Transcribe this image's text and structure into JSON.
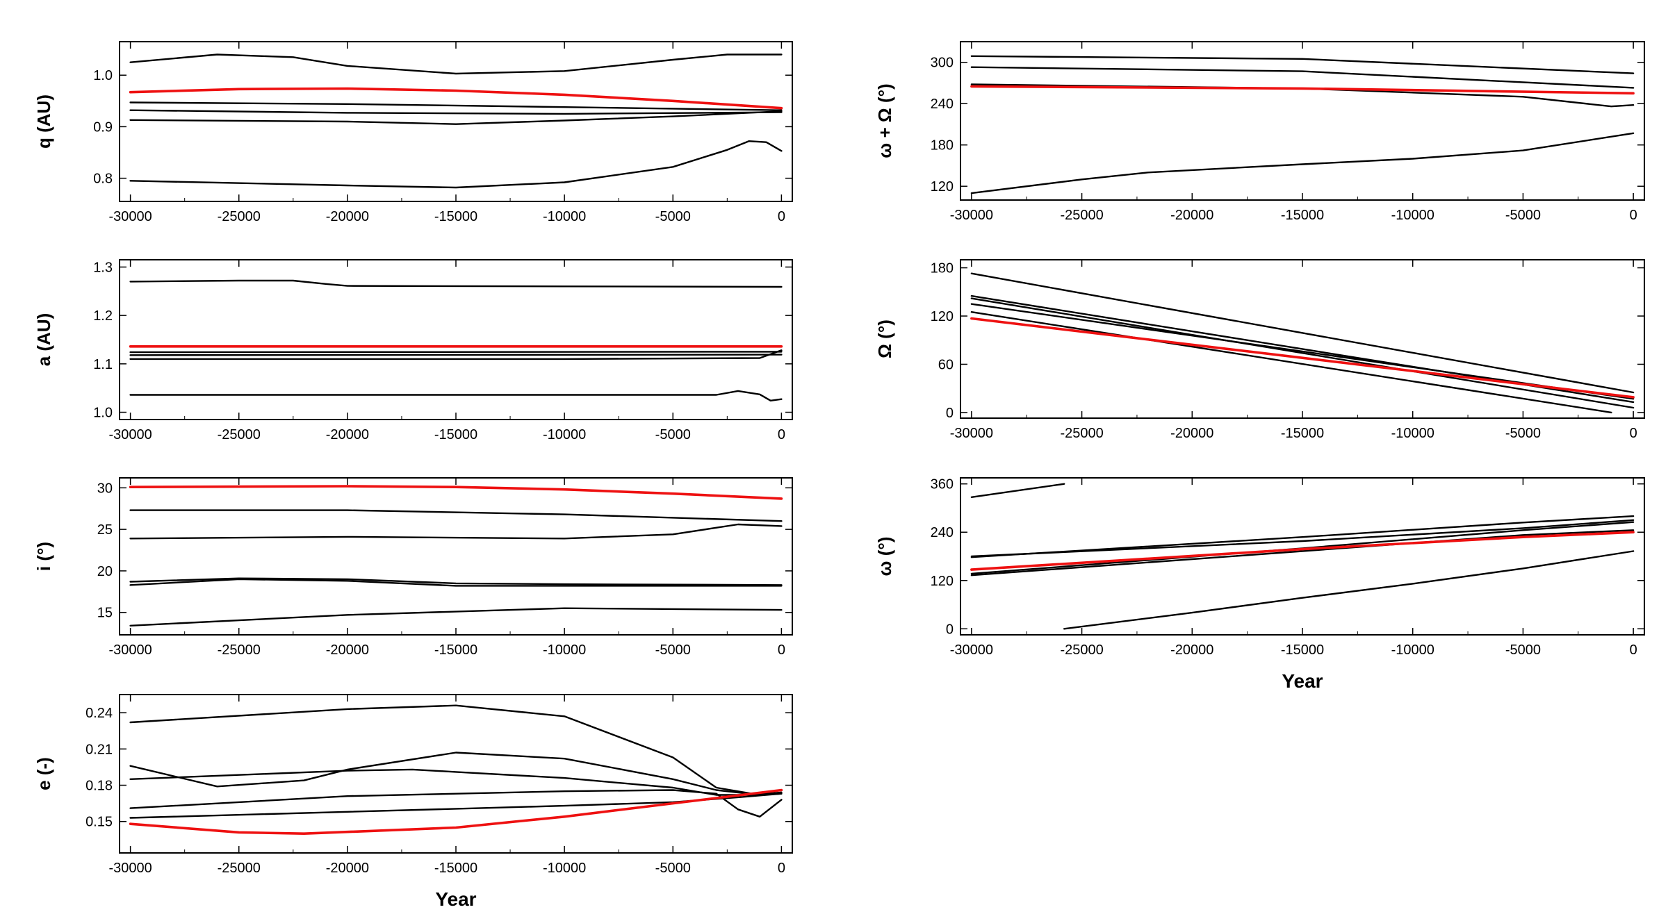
{
  "colors": {
    "frame": "#000000",
    "black_series": "#000000",
    "red_series": "#ee1111"
  },
  "xlabel": "Year",
  "chart_data": [
    {
      "id": "q",
      "type": "line",
      "ylabel": "q (AU)",
      "xlabel": "",
      "xlim": [
        -30500,
        500
      ],
      "ylim": [
        0.755,
        1.065
      ],
      "xticks": [
        -30000,
        -25000,
        -20000,
        -15000,
        -10000,
        -5000,
        0
      ],
      "yticks": [
        0.8,
        0.9,
        1.0
      ],
      "ytick_labels": [
        "0.8",
        "0.9",
        "1.0"
      ],
      "series": [
        {
          "color": "red",
          "x": [
            -30000,
            -25000,
            -20000,
            -15000,
            -10000,
            -5000,
            0
          ],
          "y": [
            0.967,
            0.973,
            0.974,
            0.97,
            0.962,
            0.95,
            0.936
          ]
        },
        {
          "color": "black",
          "x": [
            -30000,
            -26000,
            -22500,
            -20000,
            -15000,
            -10000,
            -5000,
            -2500,
            0
          ],
          "y": [
            1.025,
            1.04,
            1.035,
            1.018,
            1.003,
            1.008,
            1.03,
            1.04,
            1.04
          ]
        },
        {
          "color": "black",
          "x": [
            -30000,
            -20000,
            -10000,
            0
          ],
          "y": [
            0.947,
            0.944,
            0.938,
            0.932
          ]
        },
        {
          "color": "black",
          "x": [
            -30000,
            -20000,
            -10000,
            0
          ],
          "y": [
            0.932,
            0.927,
            0.925,
            0.928
          ]
        },
        {
          "color": "black",
          "x": [
            -30000,
            -20000,
            -15000,
            -10000,
            -5000,
            0
          ],
          "y": [
            0.913,
            0.91,
            0.905,
            0.912,
            0.92,
            0.93
          ]
        },
        {
          "color": "black",
          "x": [
            -30000,
            -20000,
            -15000,
            -10000,
            -5000,
            -2500,
            -1500,
            -700,
            0
          ],
          "y": [
            0.795,
            0.786,
            0.782,
            0.792,
            0.822,
            0.855,
            0.872,
            0.87,
            0.853
          ]
        }
      ]
    },
    {
      "id": "a",
      "type": "line",
      "ylabel": "a (AU)",
      "xlabel": "",
      "xlim": [
        -30500,
        500
      ],
      "ylim": [
        0.985,
        1.315
      ],
      "xticks": [
        -30000,
        -25000,
        -20000,
        -15000,
        -10000,
        -5000,
        0
      ],
      "yticks": [
        1.0,
        1.1,
        1.2,
        1.3
      ],
      "ytick_labels": [
        "1.0",
        "1.1",
        "1.2",
        "1.3"
      ],
      "series": [
        {
          "color": "black",
          "x": [
            -30000,
            -25000,
            -22500,
            -21000,
            -20000,
            -10000,
            0
          ],
          "y": [
            1.27,
            1.272,
            1.272,
            1.265,
            1.261,
            1.26,
            1.259
          ]
        },
        {
          "color": "red",
          "x": [
            -30000,
            0
          ],
          "y": [
            1.136,
            1.136
          ]
        },
        {
          "color": "black",
          "x": [
            -30000,
            0
          ],
          "y": [
            1.124,
            1.125
          ]
        },
        {
          "color": "black",
          "x": [
            -30000,
            0
          ],
          "y": [
            1.118,
            1.119
          ]
        },
        {
          "color": "black",
          "x": [
            -30000,
            -10000,
            -1000,
            0
          ],
          "y": [
            1.11,
            1.11,
            1.112,
            1.128
          ]
        },
        {
          "color": "black",
          "x": [
            -30000,
            -3000,
            -2000,
            -1000,
            -500,
            0
          ],
          "y": [
            1.036,
            1.036,
            1.044,
            1.037,
            1.024,
            1.027
          ]
        }
      ]
    },
    {
      "id": "i",
      "type": "line",
      "ylabel": "i (°)",
      "xlabel": "",
      "xlim": [
        -30500,
        500
      ],
      "ylim": [
        12.3,
        31.2
      ],
      "xticks": [
        -30000,
        -25000,
        -20000,
        -15000,
        -10000,
        -5000,
        0
      ],
      "yticks": [
        15,
        20,
        25,
        30
      ],
      "ytick_labels": [
        "15",
        "20",
        "25",
        "30"
      ],
      "series": [
        {
          "color": "red",
          "x": [
            -30000,
            -20000,
            -15000,
            -10000,
            -5000,
            0
          ],
          "y": [
            30.1,
            30.2,
            30.1,
            29.8,
            29.3,
            28.7
          ]
        },
        {
          "color": "black",
          "x": [
            -30000,
            -20000,
            -10000,
            0
          ],
          "y": [
            27.3,
            27.3,
            26.8,
            26.0
          ]
        },
        {
          "color": "black",
          "x": [
            -30000,
            -20000,
            -10000,
            -5000,
            -2000,
            0
          ],
          "y": [
            23.9,
            24.1,
            23.9,
            24.4,
            25.6,
            25.4
          ]
        },
        {
          "color": "black",
          "x": [
            -30000,
            -25000,
            -20000,
            -15000,
            -10000,
            0
          ],
          "y": [
            18.3,
            19.0,
            18.8,
            18.2,
            18.2,
            18.2
          ]
        },
        {
          "color": "black",
          "x": [
            -30000,
            -25000,
            -20000,
            -15000,
            -10000,
            0
          ],
          "y": [
            18.7,
            19.1,
            19.0,
            18.5,
            18.4,
            18.3
          ]
        },
        {
          "color": "black",
          "x": [
            -30000,
            -20000,
            -10000,
            0
          ],
          "y": [
            13.4,
            14.7,
            15.5,
            15.3
          ]
        }
      ]
    },
    {
      "id": "e",
      "type": "line",
      "ylabel": "e (-)",
      "xlabel": "Year",
      "xlim": [
        -30500,
        500
      ],
      "ylim": [
        0.124,
        0.255
      ],
      "xticks": [
        -30000,
        -25000,
        -20000,
        -15000,
        -10000,
        -5000,
        0
      ],
      "yticks": [
        0.15,
        0.18,
        0.21,
        0.24
      ],
      "ytick_labels": [
        "0.15",
        "0.18",
        "0.21",
        "0.24"
      ],
      "series": [
        {
          "color": "red",
          "x": [
            -30000,
            -25000,
            -22000,
            -15000,
            -10000,
            -5000,
            0
          ],
          "y": [
            0.148,
            0.141,
            0.14,
            0.145,
            0.154,
            0.165,
            0.176
          ]
        },
        {
          "color": "black",
          "x": [
            -30000,
            -20000,
            -15000,
            -10000,
            -5000,
            -3000,
            -1000,
            0
          ],
          "y": [
            0.232,
            0.243,
            0.246,
            0.237,
            0.203,
            0.178,
            0.172,
            0.173
          ]
        },
        {
          "color": "black",
          "x": [
            -30000,
            -26000,
            -22000,
            -20000,
            -15000,
            -10000,
            -5000,
            -3000,
            -1000,
            0
          ],
          "y": [
            0.196,
            0.179,
            0.184,
            0.193,
            0.207,
            0.202,
            0.185,
            0.176,
            0.172,
            0.174
          ]
        },
        {
          "color": "black",
          "x": [
            -30000,
            -20000,
            -17000,
            -15000,
            -10000,
            -5000,
            -3000,
            -1500,
            0
          ],
          "y": [
            0.185,
            0.192,
            0.193,
            0.191,
            0.186,
            0.178,
            0.172,
            0.172,
            0.174
          ]
        },
        {
          "color": "black",
          "x": [
            -30000,
            -20000,
            -10000,
            -5000,
            -3000,
            -2000,
            -1000,
            0
          ],
          "y": [
            0.161,
            0.171,
            0.175,
            0.176,
            0.173,
            0.16,
            0.154,
            0.168
          ]
        },
        {
          "color": "black",
          "x": [
            -30000,
            -20000,
            -10000,
            -5000,
            -2000,
            0
          ],
          "y": [
            0.153,
            0.158,
            0.163,
            0.166,
            0.17,
            0.173
          ]
        }
      ]
    },
    {
      "id": "varpi",
      "type": "line",
      "ylabel": "ω + Ω (°)",
      "xlabel": "",
      "xlim": [
        -30500,
        500
      ],
      "ylim": [
        100,
        330
      ],
      "xticks": [
        -30000,
        -25000,
        -20000,
        -15000,
        -10000,
        -5000,
        0
      ],
      "yticks": [
        120,
        180,
        240,
        300
      ],
      "ytick_labels": [
        "120",
        "180",
        "240",
        "300"
      ],
      "series": [
        {
          "color": "black",
          "x": [
            -30000,
            -15000,
            0
          ],
          "y": [
            309,
            305,
            284
          ]
        },
        {
          "color": "black",
          "x": [
            -30000,
            -15000,
            0
          ],
          "y": [
            293,
            287,
            263
          ]
        },
        {
          "color": "black",
          "x": [
            -30000,
            -15000,
            -5000,
            -1000,
            0
          ],
          "y": [
            268,
            262,
            250,
            236,
            238
          ]
        },
        {
          "color": "red",
          "x": [
            -30000,
            -15000,
            0
          ],
          "y": [
            265,
            262,
            255
          ]
        },
        {
          "color": "black",
          "x": [
            -30000,
            -25000,
            -22000,
            -15000,
            -10000,
            -5000,
            0
          ],
          "y": [
            110,
            130,
            140,
            152,
            160,
            172,
            197
          ]
        }
      ]
    },
    {
      "id": "Omega",
      "type": "line",
      "ylabel": "Ω (°)",
      "xlabel": "",
      "xlim": [
        -30500,
        500
      ],
      "ylim": [
        -7,
        190
      ],
      "xticks": [
        -30000,
        -25000,
        -20000,
        -15000,
        -10000,
        -5000,
        0
      ],
      "yticks": [
        0,
        60,
        120,
        180
      ],
      "ytick_labels": [
        "0",
        "60",
        "120",
        "180"
      ],
      "series": [
        {
          "color": "black",
          "x": [
            -30000,
            0
          ],
          "y": [
            173,
            25
          ]
        },
        {
          "color": "black",
          "x": [
            -30000,
            0
          ],
          "y": [
            145,
            13
          ]
        },
        {
          "color": "black",
          "x": [
            -30000,
            0
          ],
          "y": [
            142,
            6
          ]
        },
        {
          "color": "black",
          "x": [
            -30000,
            0
          ],
          "y": [
            135,
            17
          ]
        },
        {
          "color": "black",
          "x": [
            -30000,
            -1000
          ],
          "y": [
            125,
            0
          ]
        },
        {
          "color": "red",
          "x": [
            -30000,
            0
          ],
          "y": [
            117,
            19
          ]
        }
      ]
    },
    {
      "id": "omega",
      "type": "line",
      "ylabel": "ω (°)",
      "xlabel": "Year",
      "xlim": [
        -30500,
        500
      ],
      "ylim": [
        -15,
        375
      ],
      "xticks": [
        -30000,
        -25000,
        -20000,
        -15000,
        -10000,
        -5000,
        0
      ],
      "yticks": [
        0,
        120,
        240,
        360
      ],
      "ytick_labels": [
        "0",
        "120",
        "240",
        "360"
      ],
      "series": [
        {
          "color": "black",
          "x": [
            -30000,
            -25800
          ],
          "y": [
            327,
            360
          ]
        },
        {
          "color": "black",
          "x": [
            -25800,
            -20000,
            -15000,
            -10000,
            -5000,
            0
          ],
          "y": [
            0,
            40,
            77,
            112,
            150,
            193
          ]
        },
        {
          "color": "black",
          "x": [
            -30000,
            -15000,
            -5000,
            0
          ],
          "y": [
            178,
            228,
            264,
            280
          ]
        },
        {
          "color": "black",
          "x": [
            -30000,
            -15000,
            -5000,
            0
          ],
          "y": [
            180,
            218,
            250,
            270
          ]
        },
        {
          "color": "black",
          "x": [
            -30000,
            -15000,
            -5000,
            0
          ],
          "y": [
            137,
            200,
            245,
            265
          ]
        },
        {
          "color": "black",
          "x": [
            -30000,
            -15000,
            -5000,
            0
          ],
          "y": [
            133,
            193,
            233,
            245
          ]
        },
        {
          "color": "red",
          "x": [
            -30000,
            -15000,
            -5000,
            0
          ],
          "y": [
            147,
            198,
            228,
            240
          ]
        }
      ]
    }
  ]
}
